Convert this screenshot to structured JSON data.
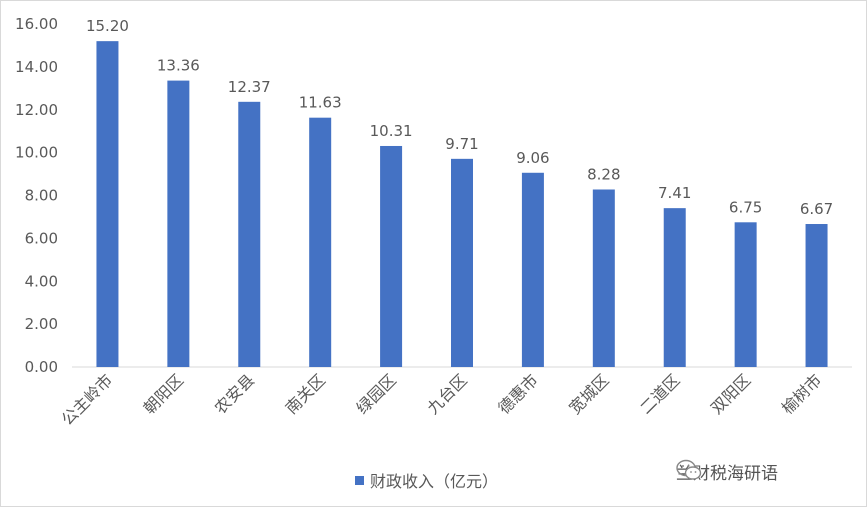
{
  "chart_data": {
    "type": "bar",
    "categories": [
      "公主岭市",
      "朝阳区",
      "农安县",
      "南关区",
      "绿园区",
      "九台区",
      "德惠市",
      "宽城区",
      "二道区",
      "双阳区",
      "榆树市"
    ],
    "series": [
      {
        "name": "财政收入（亿元）",
        "values": [
          15.2,
          13.36,
          12.37,
          11.63,
          10.31,
          9.71,
          9.06,
          8.28,
          7.41,
          6.75,
          6.67
        ]
      }
    ],
    "data_labels": [
      "15.20",
      "13.36",
      "12.37",
      "11.63",
      "10.31",
      "9.71",
      "9.06",
      "8.28",
      "7.41",
      "6.75",
      "6.67"
    ],
    "y_ticks": [
      "0.00",
      "2.00",
      "4.00",
      "6.00",
      "8.00",
      "10.00",
      "12.00",
      "14.00",
      "16.00"
    ],
    "ylim": [
      0,
      16
    ],
    "grid": false,
    "legend_position": "bottom",
    "title": "",
    "xlabel": "",
    "ylabel": ""
  },
  "colors": {
    "bar": "#4472c4",
    "axis": "#d9d9d9",
    "text": "#595959"
  },
  "legend": {
    "label": "财政收入（亿元）"
  },
  "watermark": {
    "text": "兰财税海研语",
    "icon": "wechat-icon"
  }
}
